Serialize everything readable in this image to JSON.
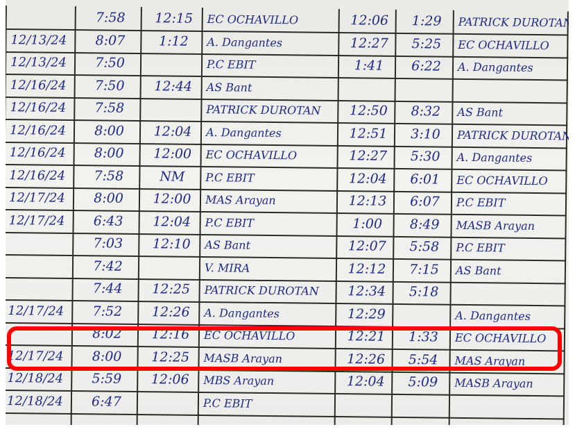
{
  "highlight_color": "#ff0000",
  "ink_color": "#1f2a86",
  "rows": [
    [
      "",
      "7:58",
      "12:15",
      "EC OCHAVILLO",
      "12:06",
      "1:29",
      "PATRICK DUROTAN"
    ],
    [
      "12/13/24",
      "8:07",
      "1:12",
      "A. Dangantes",
      "12:27",
      "5:25",
      "EC OCHAVILLO"
    ],
    [
      "12/13/24",
      "7:50",
      "",
      "P.C EBIT",
      "1:41",
      "6:22",
      "A. Dangantes"
    ],
    [
      "12/16/24",
      "7:50",
      "12:44",
      "AS Bant",
      "",
      "",
      ""
    ],
    [
      "12/16/24",
      "7:58",
      "",
      "PATRICK DUROTAN",
      "12:50",
      "8:32",
      "AS Bant"
    ],
    [
      "12/16/24",
      "8:00",
      "12:04",
      "A. Dangantes",
      "12:51",
      "3:10",
      "PATRICK DUROTAN"
    ],
    [
      "12/16/24",
      "8:00",
      "12:00",
      "EC OCHAVILLO",
      "12:27",
      "5:30",
      "A. Dangantes"
    ],
    [
      "12/16/24",
      "7:58",
      "NM",
      "P.C EBIT",
      "12:04",
      "6:01",
      "EC OCHAVILLO"
    ],
    [
      "12/17/24",
      "8:00",
      "12:00",
      "MAS Arayan",
      "12:13",
      "6:07",
      "P.C EBIT"
    ],
    [
      "12/17/24",
      "6:43",
      "12:04",
      "P.C EBIT",
      "1:00",
      "8:49",
      "MASB Arayan"
    ],
    [
      "",
      "7:03",
      "12:10",
      "AS Bant",
      "12:07",
      "5:58",
      "P.C EBIT"
    ],
    [
      "",
      "7:42",
      "",
      "V. MIRA",
      "12:12",
      "7:15",
      "AS Bant"
    ],
    [
      "",
      "7:44",
      "12:25",
      "PATRICK DUROTAN",
      "12:34",
      "5:18",
      ""
    ],
    [
      "12/17/24",
      "7:52",
      "12:26",
      "A. Dangantes",
      "12:29",
      "",
      "A. Dangantes"
    ],
    [
      "",
      "8:02",
      "12:16",
      "EC OCHAVILLO",
      "12:21",
      "1:33",
      "EC OCHAVILLO"
    ],
    [
      "12/17/24",
      "8:00",
      "12:25",
      "MASB Arayan",
      "12:26",
      "5:54",
      "MAS Arayan"
    ],
    [
      "12/18/24",
      "5:59",
      "12:06",
      "MBS Arayan",
      "12:04",
      "5:09",
      "MASB Arayan"
    ],
    [
      "12/18/24",
      "6:47",
      "",
      "P.C EBIT",
      "",
      "",
      ""
    ],
    [
      "",
      "",
      "",
      "",
      "",
      "",
      ""
    ]
  ]
}
